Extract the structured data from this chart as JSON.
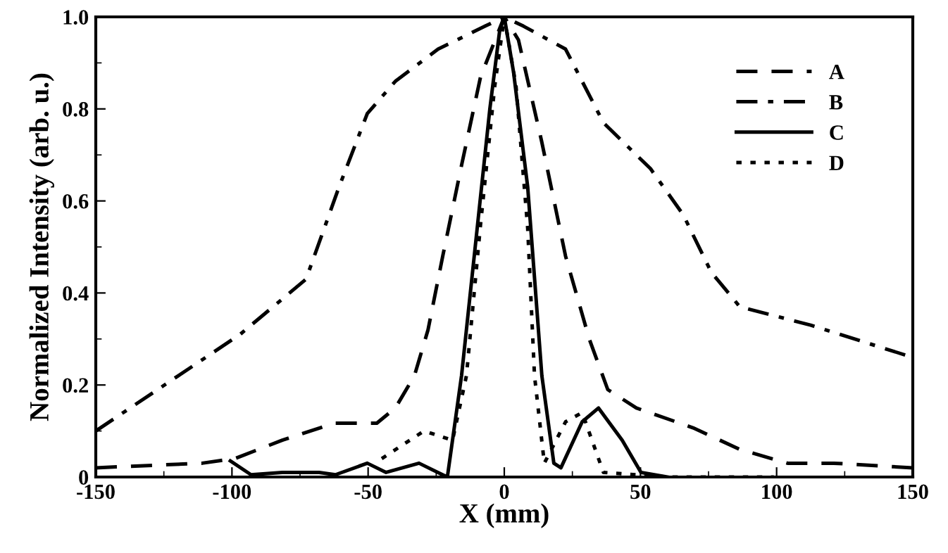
{
  "chart_data": {
    "type": "line",
    "xlabel": "X (mm)",
    "ylabel": "Normalized Intensity (arb. u.)",
    "xlim": [
      -150,
      150
    ],
    "ylim": [
      0,
      1
    ],
    "xticks": [
      -150,
      -100,
      -50,
      0,
      50,
      100,
      150
    ],
    "yticks": [
      0,
      0.2,
      0.4,
      0.6,
      0.8,
      {
        "value": 1,
        "label": "1.0"
      }
    ],
    "grid": false,
    "legend": "top right",
    "marker": "none",
    "series": [
      {
        "name": "A",
        "color": "#000000",
        "line_style": "dashed",
        "x": [
          -150,
          -111,
          -99,
          -81.5,
          -62.4,
          -46.8,
          -40,
          -33,
          -28,
          -22.6,
          -15.6,
          -8.7,
          0,
          5.2,
          13.7,
          22.5,
          31.2,
          38,
          48.5,
          69.3,
          86.5,
          104,
          121,
          150
        ],
        "values": [
          0.02,
          0.03,
          0.04,
          0.08,
          0.117,
          0.117,
          0.15,
          0.22,
          0.32,
          0.48,
          0.68,
          0.87,
          1.0,
          0.95,
          0.73,
          0.48,
          0.3,
          0.19,
          0.15,
          0.107,
          0.06,
          0.03,
          0.03,
          0.02
        ]
      },
      {
        "name": "B",
        "color": "#000000",
        "line_style": "dashdot",
        "x": [
          -150,
          -97,
          -72.8,
          -60.7,
          -50.3,
          -40,
          -24.3,
          -7,
          0,
          7,
          22.5,
          36.4,
          53.7,
          65.7,
          76,
          86.5,
          112.5,
          150
        ],
        "values": [
          0.1,
          0.31,
          0.43,
          0.63,
          0.79,
          0.86,
          0.93,
          0.98,
          1.0,
          0.98,
          0.93,
          0.77,
          0.67,
          0.57,
          0.445,
          0.37,
          0.33,
          0.26
        ]
      },
      {
        "name": "C",
        "color": "#000000",
        "line_style": "solid",
        "x": [
          -100.6,
          -93,
          -81.5,
          -68,
          -62,
          -50.3,
          -43.4,
          -31.3,
          -24.4,
          -20.9,
          -15.7,
          -10.5,
          -5.3,
          -1.7,
          0,
          3.4,
          8.6,
          13.8,
          18.2,
          20.8,
          28.6,
          34.6,
          43.3,
          50.2,
          60
        ],
        "values": [
          0.035,
          0.005,
          0.01,
          0.01,
          0.005,
          0.03,
          0.01,
          0.03,
          0.01,
          0.0,
          0.22,
          0.51,
          0.8,
          0.97,
          1.0,
          0.88,
          0.63,
          0.22,
          0.03,
          0.02,
          0.12,
          0.15,
          0.08,
          0.01,
          0.0
        ]
      },
      {
        "name": "D",
        "color": "#000000",
        "line_style": "dotted",
        "x": [
          -45,
          -29.5,
          -19,
          -13.9,
          -8.7,
          -3.5,
          0,
          4.3,
          8.6,
          11.1,
          14.7,
          22.5,
          28.6,
          36.4,
          60,
          99
        ],
        "values": [
          0.04,
          0.1,
          0.08,
          0.22,
          0.55,
          0.85,
          1.0,
          0.85,
          0.54,
          0.22,
          0.03,
          0.12,
          0.14,
          0.01,
          0.0,
          0.0
        ]
      }
    ]
  }
}
